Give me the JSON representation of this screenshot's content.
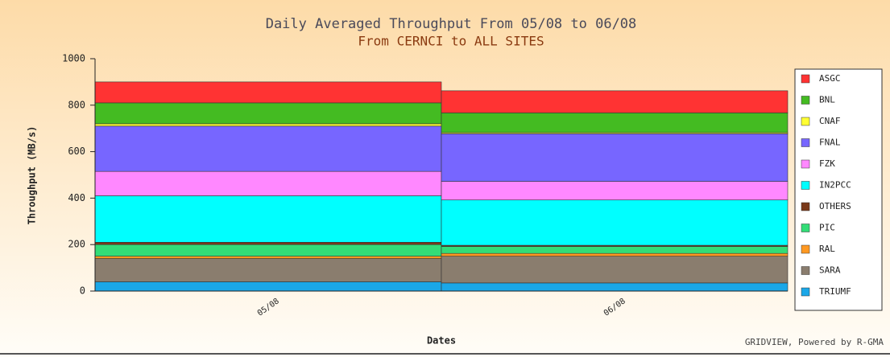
{
  "chart_data": {
    "type": "stacked_bar",
    "title": "Daily Averaged Throughput From 05/08 to 06/08",
    "subtitle": "From CERNCI to ALL SITES",
    "x_label": "Dates",
    "y_label": "Throughput (MB/s)",
    "footer": "GRIDVIEW, Powered by R-GMA",
    "categories": [
      "05/08",
      "06/08"
    ],
    "series": [
      {
        "name": "ASGC",
        "color": "#ff3333",
        "values": [
          90,
          95
        ]
      },
      {
        "name": "BNL",
        "color": "#44bb22",
        "values": [
          90,
          85
        ]
      },
      {
        "name": "CNAF",
        "color": "#ffff33",
        "values": [
          10,
          5
        ]
      },
      {
        "name": "FNAL",
        "color": "#7766ff",
        "values": [
          195,
          205
        ]
      },
      {
        "name": "FZK",
        "color": "#ff88ff",
        "values": [
          105,
          80
        ]
      },
      {
        "name": "IN2PCC",
        "color": "#00ffff",
        "values": [
          200,
          195
        ]
      },
      {
        "name": "OTHERS",
        "color": "#7a3a1a",
        "values": [
          10,
          5
        ]
      },
      {
        "name": "PIC",
        "color": "#33dd77",
        "values": [
          50,
          30
        ]
      },
      {
        "name": "RAL",
        "color": "#ff9922",
        "values": [
          10,
          12
        ]
      },
      {
        "name": "SARA",
        "color": "#8a7d6e",
        "values": [
          100,
          115
        ]
      },
      {
        "name": "TRIUMF",
        "color": "#1aa7e8",
        "values": [
          40,
          35
        ]
      }
    ],
    "ylim": [
      0,
      1000
    ],
    "yticks": [
      0,
      200,
      400,
      600,
      800,
      1000
    ],
    "legend": "right"
  }
}
